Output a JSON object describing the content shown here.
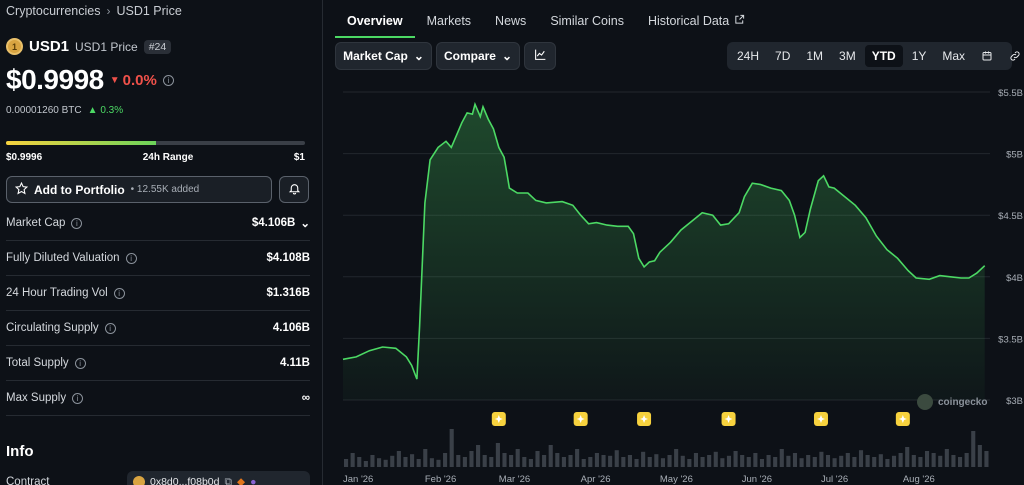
{
  "breadcrumb": {
    "root": "Cryptocurrencies",
    "current": "USD1 Price"
  },
  "coin": {
    "symbol": "USD1",
    "name": "USD1 Price",
    "rank": "#24",
    "logo_glyph": "1"
  },
  "price": {
    "value": "$0.9998",
    "change": "0.0%",
    "btc": "0.00001260 BTC",
    "btc_change": "0.3%"
  },
  "range": {
    "low": "$0.9996",
    "label": "24h Range",
    "high": "$1",
    "position": 0.5
  },
  "portfolio": {
    "label": "Add to Portfolio",
    "added": "• 12.55K added"
  },
  "stats": [
    {
      "label": "Market Cap",
      "value": "$4.106B",
      "dropdown": true
    },
    {
      "label": "Fully Diluted Valuation",
      "value": "$4.108B"
    },
    {
      "label": "24 Hour Trading Vol",
      "value": "$1.316B"
    },
    {
      "label": "Circulating Supply",
      "value": "4.106B"
    },
    {
      "label": "Total Supply",
      "value": "4.11B"
    },
    {
      "label": "Max Supply",
      "value": "∞"
    }
  ],
  "info": {
    "heading": "Info",
    "contract_label": "Contract",
    "contract_value": "0x8d0...f08b0d"
  },
  "tabs": [
    {
      "label": "Overview",
      "active": true
    },
    {
      "label": "Markets"
    },
    {
      "label": "News"
    },
    {
      "label": "Similar Coins"
    },
    {
      "label": "Historical Data",
      "external": true
    }
  ],
  "controls": {
    "metric": "Market Cap",
    "compare": "Compare"
  },
  "ranges": [
    "24H",
    "7D",
    "1M",
    "3M",
    "YTD",
    "1Y",
    "Max"
  ],
  "active_range": "YTD",
  "watermark": "coingecko",
  "colors": {
    "accent": "#4cd964",
    "negative": "#f0514a",
    "marker": "#f7d23e"
  },
  "chart_data": {
    "type": "area",
    "ylabel": "",
    "y_ticks": [
      "$3B",
      "$3.5B",
      "$4B",
      "$4.5B",
      "$5B",
      "$5.5B"
    ],
    "y_tick_values": [
      3.0,
      3.5,
      4.0,
      4.5,
      5.0,
      5.5
    ],
    "ylim": [
      3.0,
      5.5
    ],
    "x_ticks": [
      "Jan '26",
      "Feb '26",
      "Mar '26",
      "Apr '26",
      "May '26",
      "Jun '26",
      "Jul '26",
      "Aug '26"
    ],
    "x_tick_days": [
      0,
      31,
      59,
      90,
      120,
      151,
      181,
      212
    ],
    "xlim": [
      0,
      245
    ],
    "grid": true,
    "series": [
      {
        "points": [
          [
            0,
            3.33
          ],
          [
            5,
            3.35
          ],
          [
            10,
            3.4
          ],
          [
            15,
            3.43
          ],
          [
            20,
            3.42
          ],
          [
            24,
            3.35
          ],
          [
            26,
            3.28
          ],
          [
            28,
            3.17
          ],
          [
            29,
            3.6
          ],
          [
            31,
            4.6
          ],
          [
            33,
            4.95
          ],
          [
            36,
            5.05
          ],
          [
            39,
            5.1
          ],
          [
            41,
            5.05
          ],
          [
            43,
            5.15
          ],
          [
            45,
            5.25
          ],
          [
            47,
            5.33
          ],
          [
            49,
            5.32
          ],
          [
            50,
            5.4
          ],
          [
            52,
            5.3
          ],
          [
            53,
            5.38
          ],
          [
            55,
            5.28
          ],
          [
            57,
            5.2
          ],
          [
            59,
            5.05
          ],
          [
            61,
            4.97
          ],
          [
            62,
            4.85
          ],
          [
            63,
            4.72
          ],
          [
            66,
            4.68
          ],
          [
            70,
            4.68
          ],
          [
            73,
            4.62
          ],
          [
            77,
            4.6
          ],
          [
            83,
            4.61
          ],
          [
            87,
            4.58
          ],
          [
            90,
            4.5
          ],
          [
            93,
            4.43
          ],
          [
            96,
            4.44
          ],
          [
            100,
            4.42
          ],
          [
            104,
            4.41
          ],
          [
            108,
            4.41
          ],
          [
            110,
            4.35
          ],
          [
            112,
            4.15
          ],
          [
            114,
            4.08
          ],
          [
            116,
            4.12
          ],
          [
            118,
            4.13
          ],
          [
            120,
            4.2
          ],
          [
            124,
            4.28
          ],
          [
            128,
            4.38
          ],
          [
            132,
            4.45
          ],
          [
            136,
            4.52
          ],
          [
            140,
            4.5
          ],
          [
            143,
            4.42
          ],
          [
            146,
            4.43
          ],
          [
            150,
            4.52
          ],
          [
            152,
            4.65
          ],
          [
            155,
            4.76
          ],
          [
            158,
            4.75
          ],
          [
            162,
            4.72
          ],
          [
            166,
            4.7
          ],
          [
            169,
            4.62
          ],
          [
            171,
            4.5
          ],
          [
            173,
            4.32
          ],
          [
            175,
            4.36
          ],
          [
            177,
            4.55
          ],
          [
            180,
            4.78
          ],
          [
            182,
            4.82
          ],
          [
            184,
            4.73
          ],
          [
            186,
            4.72
          ],
          [
            190,
            4.65
          ],
          [
            194,
            4.58
          ],
          [
            198,
            4.48
          ],
          [
            202,
            4.33
          ],
          [
            206,
            4.22
          ],
          [
            210,
            4.15
          ],
          [
            214,
            4.05
          ],
          [
            217,
            3.99
          ],
          [
            222,
            3.98
          ],
          [
            226,
            4.01
          ],
          [
            230,
            4.0
          ],
          [
            234,
            3.99
          ],
          [
            237,
            3.99
          ],
          [
            240,
            4.03
          ],
          [
            243,
            4.09
          ]
        ]
      }
    ],
    "event_marker_days": [
      59,
      90,
      114,
      146,
      181,
      212
    ],
    "volume": [
      0.2,
      0.35,
      0.25,
      0.15,
      0.3,
      0.22,
      0.18,
      0.28,
      0.4,
      0.25,
      0.32,
      0.2,
      0.45,
      0.22,
      0.18,
      0.35,
      0.95,
      0.3,
      0.25,
      0.4,
      0.55,
      0.3,
      0.25,
      0.6,
      0.35,
      0.3,
      0.45,
      0.25,
      0.2,
      0.4,
      0.3,
      0.55,
      0.35,
      0.25,
      0.3,
      0.45,
      0.2,
      0.25,
      0.35,
      0.3,
      0.28,
      0.42,
      0.25,
      0.3,
      0.2,
      0.38,
      0.25,
      0.32,
      0.22,
      0.3,
      0.45,
      0.28,
      0.2,
      0.35,
      0.25,
      0.3,
      0.38,
      0.22,
      0.28,
      0.4,
      0.3,
      0.25,
      0.35,
      0.2,
      0.3,
      0.25,
      0.45,
      0.28,
      0.35,
      0.22,
      0.3,
      0.25,
      0.38,
      0.3,
      0.22,
      0.28,
      0.35,
      0.25,
      0.42,
      0.3,
      0.25,
      0.32,
      0.2,
      0.28,
      0.35,
      0.5,
      0.3,
      0.25,
      0.4,
      0.35,
      0.28,
      0.45,
      0.3,
      0.25,
      0.35,
      0.9,
      0.55,
      0.4
    ]
  }
}
